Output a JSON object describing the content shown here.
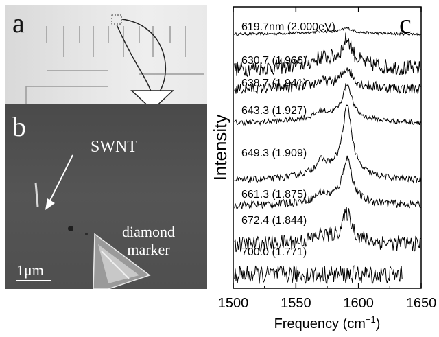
{
  "panels": {
    "a": {
      "label": "a"
    },
    "b": {
      "label": "b",
      "swnt_label": "SWNT",
      "marker_line1": "diamond",
      "marker_line2": "marker",
      "scale_label": "1μm"
    },
    "c": {
      "label": "c"
    }
  },
  "chart_data": {
    "type": "line",
    "xlabel": "Frequency (cm",
    "xlabel_sup": "−1",
    "xlabel_end": ")",
    "ylabel": "Intensity",
    "xlim": [
      1500,
      1650
    ],
    "xticks": [
      "1500",
      "1550",
      "1600",
      "1650"
    ],
    "series": [
      {
        "label": "619.7nm (2.000eV)",
        "peak": 0.06,
        "noise": 0.02,
        "broad": 0.04
      },
      {
        "label": "630.7 (1.966)",
        "peak": 0.35,
        "noise": 0.12,
        "broad": 0.15
      },
      {
        "label": "638.7 (1.941)",
        "peak": 0.25,
        "noise": 0.08,
        "broad": 0.1
      },
      {
        "label": "643.3 (1.927)",
        "peak": 0.5,
        "noise": 0.04,
        "broad": 0.12
      },
      {
        "label": "649.3 (1.909)",
        "peak": 1.0,
        "noise": 0.05,
        "broad": 0.18
      },
      {
        "label": "661.3 (1.875)",
        "peak": 0.65,
        "noise": 0.06,
        "broad": 0.1
      },
      {
        "label": "672.4 (1.844)",
        "peak": 0.4,
        "noise": 0.12,
        "broad": 0.1
      },
      {
        "label": "700.0 (1.771)",
        "peak": 0.0,
        "noise": 0.14,
        "broad": 0.0
      }
    ]
  }
}
